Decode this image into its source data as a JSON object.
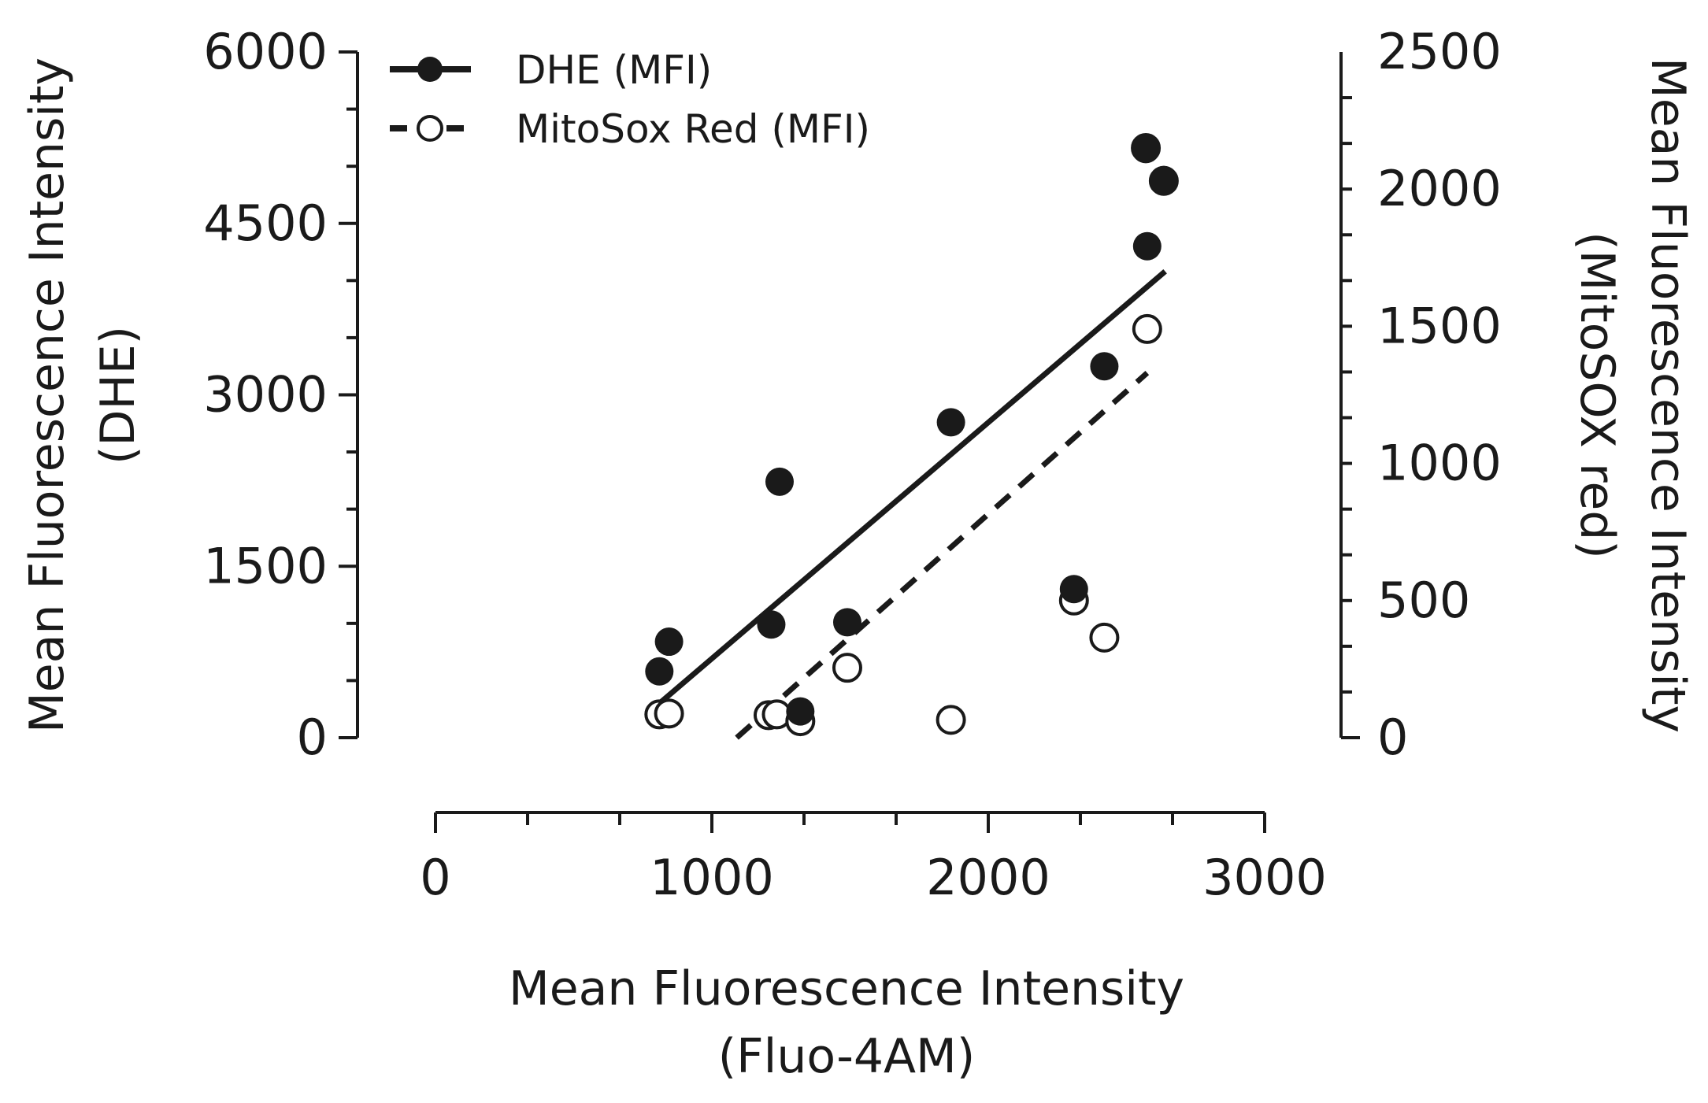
{
  "chart_data": {
    "type": "scatter",
    "x": {
      "label_line1": "Mean Fluorescence Intensity",
      "label_line2": "(Fluo-4AM)",
      "range": [
        0,
        3000
      ],
      "ticks": [
        0,
        1000,
        2000,
        3000
      ],
      "tick_labels": [
        "0",
        "1000",
        "2000",
        "3000"
      ],
      "minor_step": 333.33
    },
    "y_left": {
      "label_line1": "Mean Fluorescence Intensity",
      "label_line2": "(DHE)",
      "range": [
        0,
        6000
      ],
      "ticks": [
        0,
        1500,
        3000,
        4500,
        6000
      ],
      "tick_labels": [
        "0",
        "1500",
        "3000",
        "4500",
        "6000"
      ],
      "minor_step": 500
    },
    "y_right": {
      "label_line1": "Mean Fluorescence Intensity",
      "label_line2": "(MitoSOX red)",
      "range": [
        0,
        2500
      ],
      "ticks": [
        0,
        500,
        1000,
        1500,
        2000,
        2500
      ],
      "tick_labels": [
        "0",
        "500",
        "1000",
        "1500",
        "2000",
        "2500"
      ],
      "minor_step": 166.67
    },
    "series": [
      {
        "name": "DHE  (MFI)",
        "axis": "left",
        "marker": "filled-circle",
        "line": "solid",
        "color": "#1a1a1a",
        "points": [
          {
            "x": 810,
            "y": 580
          },
          {
            "x": 845,
            "y": 840
          },
          {
            "x": 1215,
            "y": 990
          },
          {
            "x": 1245,
            "y": 2240
          },
          {
            "x": 1320,
            "y": 230
          },
          {
            "x": 1490,
            "y": 1010
          },
          {
            "x": 1865,
            "y": 2760
          },
          {
            "x": 2310,
            "y": 1300
          },
          {
            "x": 2420,
            "y": 3250
          },
          {
            "x": 2570,
            "y": 5150
          },
          {
            "x": 2635,
            "y": 4880
          },
          {
            "x": 2575,
            "y": 4300
          }
        ],
        "fit": {
          "x": [
            810,
            2640
          ],
          "y": [
            300,
            4080
          ]
        }
      },
      {
        "name": "MitoSox Red (MFI)",
        "axis": "right",
        "marker": "open-circle",
        "line": "dashed",
        "color": "#1a1a1a",
        "points": [
          {
            "x": 810,
            "y": 85
          },
          {
            "x": 845,
            "y": 88
          },
          {
            "x": 1205,
            "y": 82
          },
          {
            "x": 1235,
            "y": 85
          },
          {
            "x": 1320,
            "y": 60
          },
          {
            "x": 1490,
            "y": 255
          },
          {
            "x": 1865,
            "y": 65
          },
          {
            "x": 2310,
            "y": 500
          },
          {
            "x": 2420,
            "y": 365
          },
          {
            "x": 2575,
            "y": 1490
          },
          {
            "x": 2570,
            "y": 2150
          },
          {
            "x": 2635,
            "y": 2030
          }
        ],
        "fit": {
          "x": [
            1090,
            2575
          ],
          "y": [
            0,
            1330
          ]
        }
      }
    ],
    "legend": {
      "position": "top-left",
      "entries": [
        "DHE  (MFI)",
        "MitoSox Red (MFI)"
      ]
    }
  }
}
